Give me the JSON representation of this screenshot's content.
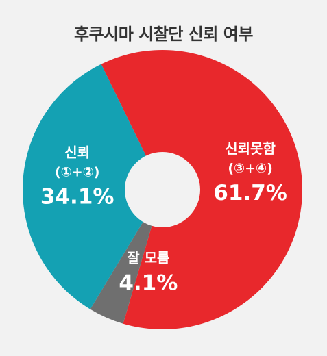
{
  "chart_data": {
    "type": "pie",
    "title": "후쿠시마 시찰단 신뢰 여부",
    "donut": true,
    "slices": [
      {
        "name": "신뢰못함",
        "sub": "(③+④)",
        "value": 61.7,
        "label": "61.7%",
        "color": "#e8282c"
      },
      {
        "name": "잘 모름",
        "sub": "",
        "value": 4.1,
        "label": "4.1%",
        "color": "#6f6f6f"
      },
      {
        "name": "신뢰",
        "sub": "(①+②)",
        "value": 34.1,
        "label": "34.1%",
        "color": "#14a1b3"
      }
    ]
  },
  "colors": {
    "background": "#f2f2f2",
    "hole": "#f2f2f2",
    "text_light": "#ffffff",
    "title": "#333333"
  }
}
